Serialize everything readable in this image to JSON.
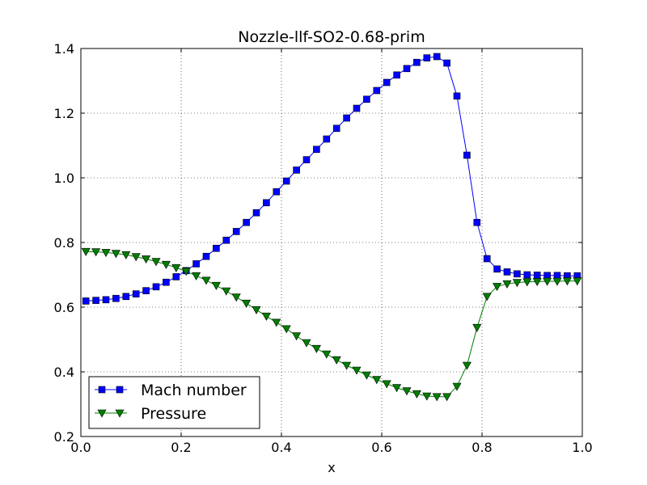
{
  "chart_data": {
    "type": "line",
    "title": "Nozzle-llf-SO2-0.68-prim",
    "xlabel": "x",
    "ylabel": "",
    "xlim": [
      0.0,
      1.0
    ],
    "ylim": [
      0.2,
      1.4
    ],
    "x_ticks": [
      "0.0",
      "0.2",
      "0.4",
      "0.6",
      "0.8",
      "1.0"
    ],
    "y_ticks": [
      "0.2",
      "0.4",
      "0.6",
      "0.8",
      "1.0",
      "1.2",
      "1.4"
    ],
    "grid": true,
    "legend_position": "bottom-left",
    "x": [
      0.01,
      0.03,
      0.05,
      0.07,
      0.09,
      0.11,
      0.13,
      0.15,
      0.17,
      0.19,
      0.21,
      0.23,
      0.25,
      0.27,
      0.29,
      0.31,
      0.33,
      0.35,
      0.37,
      0.39,
      0.41,
      0.43,
      0.45,
      0.47,
      0.49,
      0.51,
      0.53,
      0.55,
      0.57,
      0.59,
      0.61,
      0.63,
      0.65,
      0.67,
      0.69,
      0.71,
      0.73,
      0.75,
      0.77,
      0.79,
      0.81,
      0.83,
      0.85,
      0.87,
      0.89,
      0.91,
      0.93,
      0.95,
      0.97,
      0.99
    ],
    "series": [
      {
        "name": "Mach number",
        "color": "#0000ff",
        "marker": "square",
        "values": [
          0.619,
          0.621,
          0.623,
          0.627,
          0.633,
          0.641,
          0.651,
          0.663,
          0.677,
          0.694,
          0.713,
          0.734,
          0.757,
          0.782,
          0.807,
          0.834,
          0.862,
          0.892,
          0.923,
          0.957,
          0.99,
          1.024,
          1.056,
          1.088,
          1.12,
          1.153,
          1.185,
          1.215,
          1.243,
          1.27,
          1.295,
          1.318,
          1.338,
          1.357,
          1.371,
          1.375,
          1.355,
          1.253,
          1.07,
          0.862,
          0.75,
          0.718,
          0.709,
          0.703,
          0.7,
          0.699,
          0.698,
          0.698,
          0.697,
          0.697
        ]
      },
      {
        "name": "Pressure",
        "color": "#007f00",
        "marker": "triangle-down",
        "values": [
          0.772,
          0.771,
          0.769,
          0.766,
          0.762,
          0.756,
          0.749,
          0.741,
          0.732,
          0.722,
          0.711,
          0.697,
          0.683,
          0.667,
          0.65,
          0.631,
          0.612,
          0.592,
          0.572,
          0.553,
          0.533,
          0.511,
          0.49,
          0.472,
          0.455,
          0.437,
          0.42,
          0.405,
          0.39,
          0.376,
          0.363,
          0.351,
          0.341,
          0.332,
          0.325,
          0.323,
          0.323,
          0.355,
          0.42,
          0.537,
          0.633,
          0.664,
          0.672,
          0.676,
          0.678,
          0.679,
          0.68,
          0.68,
          0.681,
          0.681
        ]
      }
    ]
  }
}
